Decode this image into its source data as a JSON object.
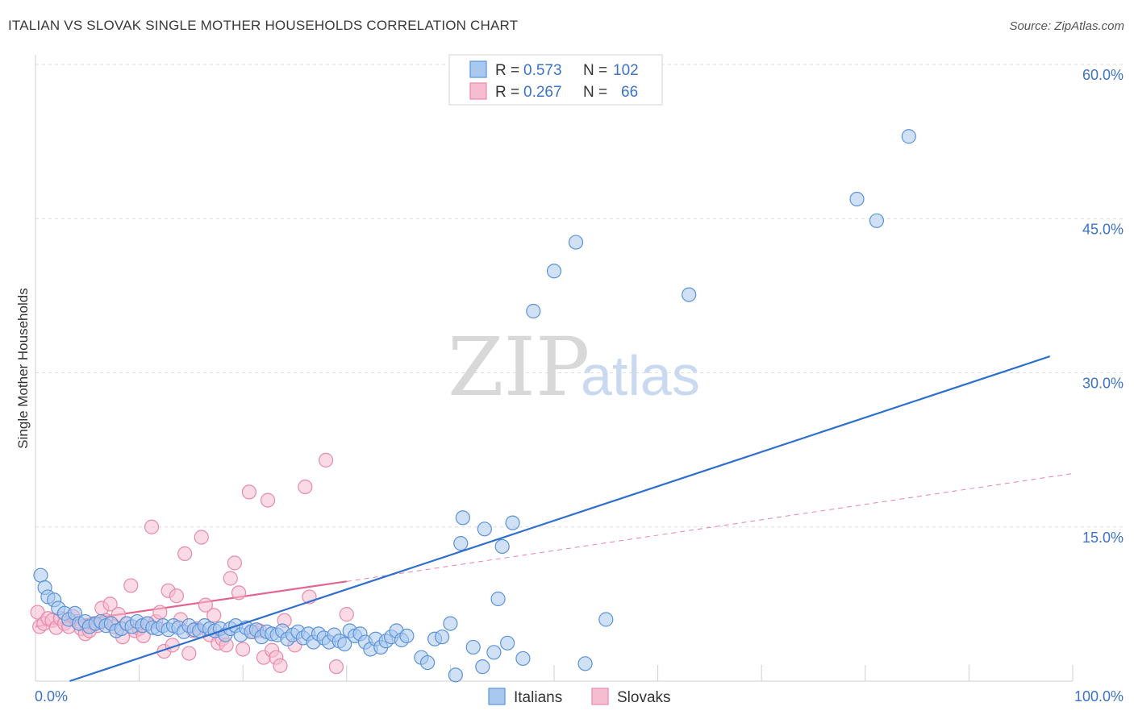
{
  "title": "ITALIAN VS SLOVAK SINGLE MOTHER HOUSEHOLDS CORRELATION CHART",
  "source": "Source: ZipAtlas.com",
  "watermark": {
    "zip": "ZIP",
    "atlas": "atlas"
  },
  "colors": {
    "italians_fill": "#a9c8ef",
    "italians_stroke": "#5b93d9",
    "italians_line": "#2f6fce",
    "slovaks_fill": "#f6bcd0",
    "slovaks_stroke": "#e88aa8",
    "slovaks_line": "#e2668f",
    "grid": "#dcdcdc",
    "tick": "#3b73c8"
  },
  "legend": {
    "r_label": "R =",
    "n_label": "N =",
    "italians": {
      "r": "0.573",
      "n": "102"
    },
    "slovaks": {
      "r": "0.267",
      "n": "66"
    }
  },
  "chart_data": {
    "type": "scatter",
    "title": "ITALIAN VS SLOVAK SINGLE MOTHER HOUSEHOLDS CORRELATION CHART",
    "xlabel": "",
    "ylabel": "Single Mother Households",
    "xlim": [
      0,
      100
    ],
    "ylim": [
      0,
      60
    ],
    "x_tick_labels": [
      "0.0%",
      "100.0%"
    ],
    "y_ticks": [
      15,
      30,
      45,
      60
    ],
    "y_tick_labels": [
      "15.0%",
      "30.0%",
      "45.0%",
      "60.0%"
    ],
    "series": [
      {
        "name": "Italians",
        "points": [
          [
            0.5,
            10.3
          ],
          [
            0.9,
            9.1
          ],
          [
            1.2,
            8.2
          ],
          [
            1.8,
            7.9
          ],
          [
            2.2,
            7.1
          ],
          [
            2.8,
            6.6
          ],
          [
            3.2,
            6.0
          ],
          [
            3.8,
            6.6
          ],
          [
            4.2,
            5.6
          ],
          [
            4.8,
            5.8
          ],
          [
            5.2,
            5.3
          ],
          [
            5.8,
            5.6
          ],
          [
            6.3,
            5.8
          ],
          [
            6.8,
            5.4
          ],
          [
            7.3,
            5.6
          ],
          [
            7.8,
            4.9
          ],
          [
            8.3,
            5.1
          ],
          [
            8.8,
            5.6
          ],
          [
            9.3,
            5.3
          ],
          [
            9.8,
            5.8
          ],
          [
            10.3,
            5.4
          ],
          [
            10.8,
            5.6
          ],
          [
            11.3,
            5.2
          ],
          [
            11.8,
            5.1
          ],
          [
            12.3,
            5.4
          ],
          [
            12.8,
            5.0
          ],
          [
            13.3,
            5.4
          ],
          [
            13.8,
            5.2
          ],
          [
            14.3,
            4.8
          ],
          [
            14.8,
            5.4
          ],
          [
            15.3,
            5.0
          ],
          [
            15.8,
            4.9
          ],
          [
            16.3,
            5.4
          ],
          [
            16.8,
            5.1
          ],
          [
            17.3,
            4.9
          ],
          [
            17.8,
            5.1
          ],
          [
            18.3,
            4.5
          ],
          [
            18.8,
            5.1
          ],
          [
            19.3,
            5.4
          ],
          [
            19.8,
            4.5
          ],
          [
            20.3,
            5.2
          ],
          [
            20.8,
            4.8
          ],
          [
            21.3,
            5.0
          ],
          [
            21.8,
            4.3
          ],
          [
            22.3,
            4.8
          ],
          [
            22.8,
            4.6
          ],
          [
            23.3,
            4.5
          ],
          [
            23.8,
            4.9
          ],
          [
            24.3,
            4.1
          ],
          [
            24.8,
            4.5
          ],
          [
            25.3,
            4.8
          ],
          [
            25.8,
            4.2
          ],
          [
            26.3,
            4.6
          ],
          [
            26.8,
            3.8
          ],
          [
            27.3,
            4.6
          ],
          [
            27.8,
            4.2
          ],
          [
            28.3,
            3.8
          ],
          [
            28.8,
            4.5
          ],
          [
            29.3,
            3.9
          ],
          [
            29.8,
            3.6
          ],
          [
            30.3,
            4.9
          ],
          [
            30.8,
            4.4
          ],
          [
            31.3,
            4.6
          ],
          [
            31.8,
            3.8
          ],
          [
            32.3,
            3.1
          ],
          [
            32.8,
            4.1
          ],
          [
            33.3,
            3.3
          ],
          [
            33.8,
            3.9
          ],
          [
            34.3,
            4.3
          ],
          [
            34.8,
            4.9
          ],
          [
            35.3,
            4.0
          ],
          [
            35.8,
            4.4
          ],
          [
            37.2,
            2.3
          ],
          [
            37.8,
            1.8
          ],
          [
            38.5,
            4.1
          ],
          [
            39.2,
            4.3
          ],
          [
            40.0,
            5.6
          ],
          [
            40.5,
            0.6
          ],
          [
            41.0,
            13.4
          ],
          [
            41.2,
            15.9
          ],
          [
            42.2,
            3.3
          ],
          [
            43.1,
            1.4
          ],
          [
            43.3,
            14.8
          ],
          [
            44.2,
            2.8
          ],
          [
            44.6,
            8.0
          ],
          [
            45.0,
            13.1
          ],
          [
            45.5,
            3.7
          ],
          [
            46.0,
            15.4
          ],
          [
            47.0,
            2.2
          ],
          [
            48.0,
            36.0
          ],
          [
            50.0,
            39.9
          ],
          [
            52.1,
            42.7
          ],
          [
            53.0,
            1.7
          ],
          [
            55.0,
            6.0
          ],
          [
            63.0,
            37.6
          ],
          [
            79.2,
            46.9
          ],
          [
            81.1,
            44.8
          ],
          [
            84.2,
            53.0
          ]
        ]
      },
      {
        "name": "Slovaks",
        "points": [
          [
            0.2,
            6.7
          ],
          [
            0.4,
            5.3
          ],
          [
            0.8,
            5.6
          ],
          [
            1.2,
            6.1
          ],
          [
            1.6,
            5.9
          ],
          [
            2.0,
            5.2
          ],
          [
            2.4,
            6.1
          ],
          [
            2.8,
            5.6
          ],
          [
            3.2,
            5.3
          ],
          [
            3.6,
            6.3
          ],
          [
            4.0,
            5.8
          ],
          [
            4.4,
            5.1
          ],
          [
            4.8,
            4.6
          ],
          [
            5.2,
            4.9
          ],
          [
            5.6,
            5.6
          ],
          [
            6.0,
            5.4
          ],
          [
            6.4,
            7.1
          ],
          [
            6.8,
            5.9
          ],
          [
            7.2,
            7.5
          ],
          [
            7.6,
            5.3
          ],
          [
            8.0,
            6.5
          ],
          [
            8.4,
            4.3
          ],
          [
            8.8,
            5.6
          ],
          [
            9.2,
            9.3
          ],
          [
            9.6,
            4.9
          ],
          [
            10.0,
            5.1
          ],
          [
            10.4,
            4.4
          ],
          [
            10.8,
            5.6
          ],
          [
            11.2,
            15.0
          ],
          [
            11.6,
            5.8
          ],
          [
            12.0,
            6.7
          ],
          [
            12.4,
            2.9
          ],
          [
            12.8,
            8.8
          ],
          [
            13.2,
            3.5
          ],
          [
            13.6,
            8.3
          ],
          [
            14.0,
            6.0
          ],
          [
            14.4,
            12.4
          ],
          [
            14.8,
            2.7
          ],
          [
            15.2,
            4.9
          ],
          [
            15.6,
            5.1
          ],
          [
            16.0,
            14.0
          ],
          [
            16.4,
            7.4
          ],
          [
            16.8,
            4.5
          ],
          [
            17.2,
            6.4
          ],
          [
            17.6,
            3.7
          ],
          [
            18.0,
            4.1
          ],
          [
            18.4,
            3.5
          ],
          [
            18.8,
            10.0
          ],
          [
            19.2,
            11.5
          ],
          [
            19.6,
            8.6
          ],
          [
            20.0,
            3.1
          ],
          [
            20.6,
            18.4
          ],
          [
            21.0,
            4.8
          ],
          [
            21.6,
            4.9
          ],
          [
            22.0,
            2.3
          ],
          [
            22.4,
            17.6
          ],
          [
            22.8,
            3.0
          ],
          [
            23.2,
            2.3
          ],
          [
            23.6,
            1.5
          ],
          [
            24.0,
            5.9
          ],
          [
            25.0,
            3.5
          ],
          [
            26.0,
            18.9
          ],
          [
            26.4,
            8.2
          ],
          [
            28.0,
            21.5
          ],
          [
            29.0,
            1.4
          ],
          [
            30.0,
            6.5
          ]
        ]
      }
    ],
    "trend_lines": [
      {
        "name": "Italians",
        "x": [
          3.3,
          97.8
        ],
        "y": [
          0.0,
          31.6
        ]
      },
      {
        "name": "Slovaks",
        "x": [
          0.0,
          30.0
        ],
        "y": [
          5.3,
          9.7
        ],
        "dashed_extension_to": [
          100.0,
          20.2
        ]
      }
    ]
  },
  "bottom_legend": [
    "Italians",
    "Slovaks"
  ]
}
